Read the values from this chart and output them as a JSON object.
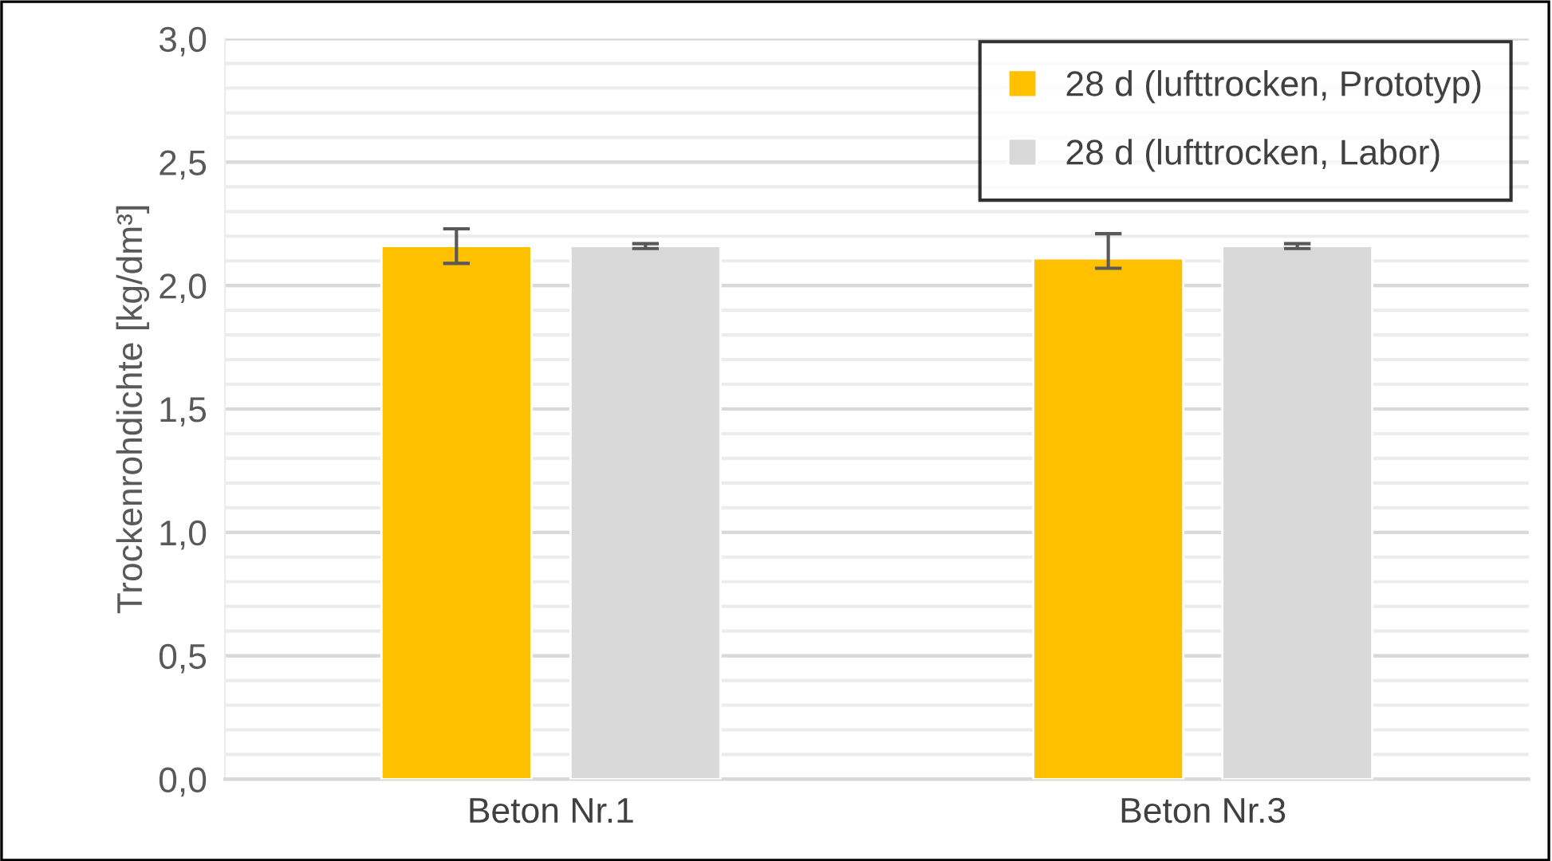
{
  "chart_data": {
    "type": "bar",
    "ylabel": "Trockenrohdichte [kg/dm³]",
    "categories": [
      "Beton Nr.1",
      "Beton Nr.3"
    ],
    "series": [
      {
        "name": "28 d (lufttrocken, Prototyp)",
        "color": "#ffc000",
        "values": [
          2.16,
          2.11
        ],
        "errors": [
          0.07,
          [
            2.07,
            2.21
          ]
        ]
      },
      {
        "name": "28 d (lufttrocken, Labor)",
        "color": "#d9d9d9",
        "values": [
          2.16,
          2.16
        ],
        "errors": [
          0.01,
          0.01
        ]
      }
    ],
    "ylim": [
      0,
      3
    ],
    "yticks": [
      {
        "value": 0,
        "label": "0,0"
      },
      {
        "value": 0.1,
        "label": null
      },
      {
        "value": 0.2,
        "label": null
      },
      {
        "value": 0.3,
        "label": null
      },
      {
        "value": 0.4,
        "label": null
      },
      {
        "value": 0.5,
        "label": "0,5"
      },
      {
        "value": 0.6,
        "label": null
      },
      {
        "value": 0.7,
        "label": null
      },
      {
        "value": 0.8,
        "label": null
      },
      {
        "value": 0.9,
        "label": null
      },
      {
        "value": 1.0,
        "label": "1,0"
      },
      {
        "value": 1.1,
        "label": null
      },
      {
        "value": 1.2,
        "label": null
      },
      {
        "value": 1.3,
        "label": null
      },
      {
        "value": 1.4,
        "label": null
      },
      {
        "value": 1.5,
        "label": "1,5"
      },
      {
        "value": 1.6,
        "label": null
      },
      {
        "value": 1.7,
        "label": null
      },
      {
        "value": 1.8,
        "label": null
      },
      {
        "value": 1.9,
        "label": null
      },
      {
        "value": 2.0,
        "label": "2,0"
      },
      {
        "value": 2.1,
        "label": null
      },
      {
        "value": 2.2,
        "label": null
      },
      {
        "value": 2.3,
        "label": null
      },
      {
        "value": 2.4,
        "label": null
      },
      {
        "value": 2.5,
        "label": "2,5"
      },
      {
        "value": 2.6,
        "label": null
      },
      {
        "value": 2.7,
        "label": null
      },
      {
        "value": 2.8,
        "label": null
      },
      {
        "value": 2.9,
        "label": null
      },
      {
        "value": 3.0,
        "label": "3,0"
      }
    ],
    "grid": "y",
    "legend": "top right"
  }
}
